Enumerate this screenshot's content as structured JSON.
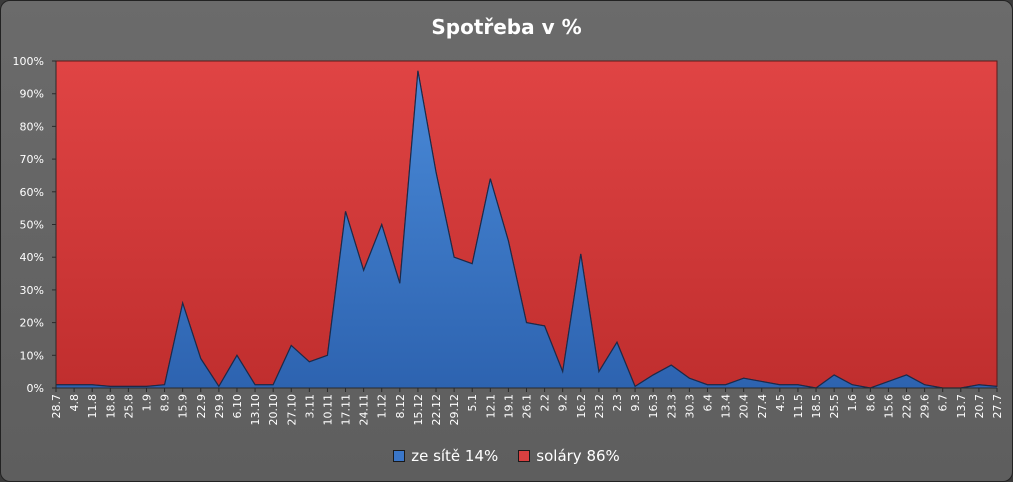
{
  "chart_data": {
    "type": "area",
    "stacked": "percent",
    "title": "Spotřeba v %",
    "ylim": [
      0,
      100
    ],
    "yticks": [
      "0%",
      "10%",
      "20%",
      "30%",
      "40%",
      "50%",
      "60%",
      "70%",
      "80%",
      "90%",
      "100%"
    ],
    "legend_position": "bottom",
    "grid": false,
    "x": [
      "28.7",
      "4.8",
      "11.8",
      "18.8",
      "25.8",
      "1.9",
      "8.9",
      "15.9",
      "22.9",
      "29.9",
      "6.10",
      "13.10",
      "20.10",
      "27.10",
      "3.11",
      "10.11",
      "17.11",
      "24.11",
      "1.12",
      "8.12",
      "15.12",
      "22.12",
      "29.12",
      "5.1",
      "12.1",
      "19.1",
      "26.1",
      "2.2",
      "9.2",
      "16.2",
      "23.2",
      "2.3",
      "9.3",
      "16.3",
      "23.3",
      "30.3",
      "6.4",
      "13.4",
      "20.4",
      "27.4",
      "4.5",
      "11.5",
      "18.5",
      "25.5",
      "1.6",
      "8.6",
      "15.6",
      "22.6",
      "29.6",
      "6.7",
      "13.7",
      "20.7",
      "27.7"
    ],
    "series": [
      {
        "name": "ze sítě 14%",
        "color": "#3a76c8",
        "values": [
          1,
          1,
          1,
          0.5,
          0.5,
          0.5,
          1,
          26,
          9,
          0.5,
          10,
          1,
          1,
          13,
          8,
          10,
          54,
          36,
          50,
          32,
          97,
          66,
          40,
          38,
          64,
          45,
          20,
          19,
          5,
          41,
          5,
          14,
          0.5,
          4,
          7,
          3,
          1,
          1,
          3,
          2,
          1,
          1,
          0,
          4,
          1,
          0,
          2,
          4,
          1,
          0,
          0,
          1,
          0.5
        ]
      },
      {
        "name": "soláry 86%",
        "color": "#d94040",
        "values_remainder_to": 100
      }
    ]
  }
}
